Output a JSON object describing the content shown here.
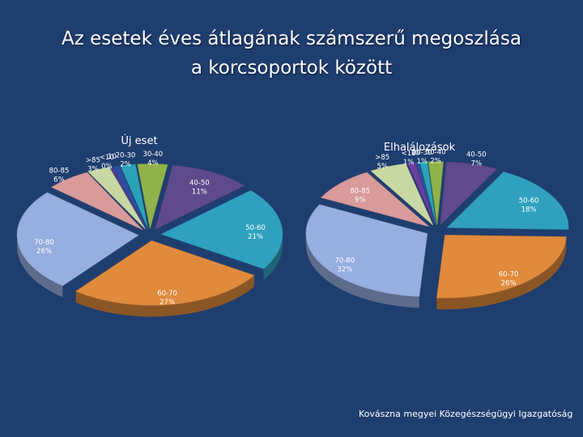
{
  "title_line1": "Az esetek éves átlagának számszerű megoszlása",
  "title_line2": "a korcsoportok között",
  "footer": "Kovászna megyei Közegészségügyi Igazgatóság",
  "colors": {
    "background": "#1f3e70",
    "<10": "#6b3fa0",
    "10-20": "#2f4f9e",
    "20-30": "#2aa3b8",
    "30-40": "#8fb34a",
    "40-50": "#5e4a8c",
    "50-60": "#2fa1bf",
    "60-70": "#e08a3c",
    "70-80": "#96aee0",
    "80-85": "#d99a9a",
    ">85": "#c9d8a3"
  },
  "chart_data": [
    {
      "type": "pie",
      "title": "Új eset",
      "slices": [
        {
          "category": ">85",
          "label": ">85",
          "value": 3,
          "display": "3%"
        },
        {
          "category": "<10",
          "label": "<10",
          "value": 0,
          "display": "0%"
        },
        {
          "category": "10-20",
          "label": "10",
          "value": 1,
          "display": ""
        },
        {
          "category": "20-30",
          "label": "20-30",
          "value": 2,
          "display": "2%"
        },
        {
          "category": "30-40",
          "label": "30-40",
          "value": 4,
          "display": "4%"
        },
        {
          "category": "40-50",
          "label": "40-50",
          "value": 11,
          "display": "11%"
        },
        {
          "category": "50-60",
          "label": "50-60",
          "value": 21,
          "display": "21%"
        },
        {
          "category": "60-70",
          "label": "60-70",
          "value": 27,
          "display": "27%"
        },
        {
          "category": "70-80",
          "label": "70-80",
          "value": 26,
          "display": "26%"
        },
        {
          "category": "80-85",
          "label": "80-85",
          "value": 6,
          "display": "6%"
        }
      ]
    },
    {
      "type": "pie",
      "title": "Elhalálozások",
      "slices": [
        {
          "category": "<10",
          "label": "<10",
          "value": 1,
          "display": "1%"
        },
        {
          "category": "10-20",
          "label": "10",
          "value": 0.5,
          "display": ""
        },
        {
          "category": "20-30",
          "label": "20-30",
          "value": 1,
          "display": "1%"
        },
        {
          "category": "30-40",
          "label": "30-40",
          "value": 2,
          "display": "2%"
        },
        {
          "category": "40-50",
          "label": "40-50",
          "value": 7,
          "display": "7%"
        },
        {
          "category": "50-60",
          "label": "50-60",
          "value": 18,
          "display": "18%"
        },
        {
          "category": "60-70",
          "label": "60-70",
          "value": 26,
          "display": "26%"
        },
        {
          "category": "70-80",
          "label": "70-80",
          "value": 32,
          "display": "32%"
        },
        {
          "category": "80-85",
          "label": "80-85",
          "value": 9,
          "display": "9%"
        },
        {
          "category": ">85",
          "label": ">85",
          "value": 5,
          "display": "5%"
        }
      ]
    }
  ]
}
